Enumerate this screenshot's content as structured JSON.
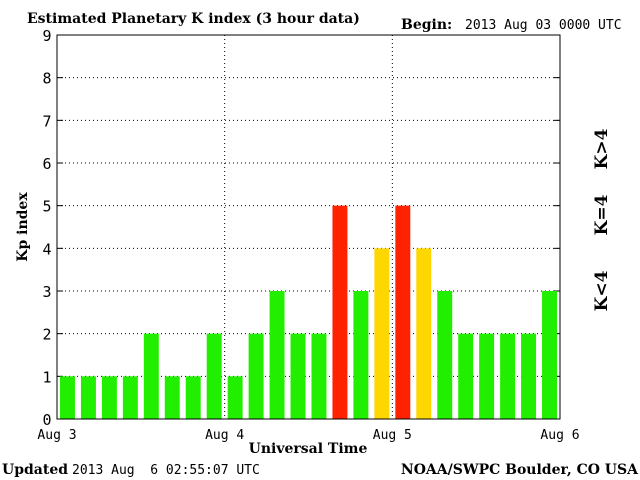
{
  "header": {
    "title": "Estimated Planetary K index (3 hour data)",
    "begin_label": "Begin:",
    "begin_value": "2013 Aug 03 0000 UTC"
  },
  "footer": {
    "updated_label": "Updated",
    "updated_value": "2013 Aug  6 02:55:07 UTC",
    "source": "NOAA/SWPC Boulder, CO USA"
  },
  "legend": {
    "high": "K>4",
    "equal": "K=4",
    "low": "K<4"
  },
  "colors": {
    "low": "#22ee00",
    "equal": "#ffd700",
    "high": "#ff2200",
    "axis": "#000000"
  },
  "chart_data": {
    "type": "bar",
    "title": "Estimated Planetary K index (3 hour data)",
    "xlabel": "Universal Time",
    "ylabel": "Kp index",
    "ylim": [
      0,
      9
    ],
    "yticks": [
      0,
      1,
      2,
      3,
      4,
      5,
      6,
      7,
      8,
      9
    ],
    "xtick_labels": [
      "Aug 3",
      "Aug 4",
      "Aug 5",
      "Aug 6"
    ],
    "grid": true,
    "interval_hours": 3,
    "values": [
      1,
      1,
      1,
      1,
      2,
      1,
      1,
      2,
      1,
      2,
      3,
      2,
      2,
      5,
      3,
      4,
      5,
      4,
      3,
      2,
      2,
      2,
      2,
      3
    ]
  }
}
